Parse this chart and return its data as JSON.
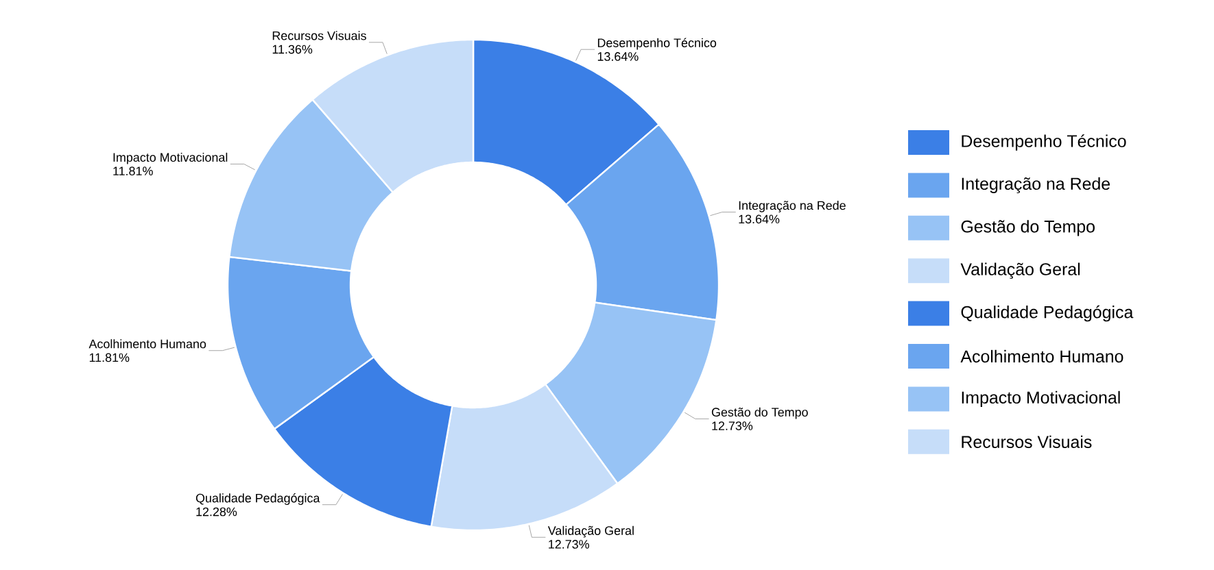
{
  "chart_data": {
    "type": "donut",
    "categories": [
      "Desempenho Técnico",
      "Integração na Rede",
      "Gestão do Tempo",
      "Validação Geral",
      "Qualidade Pedagógica",
      "Acolhimento Humano",
      "Impacto Motivacional",
      "Recursos Visuais"
    ],
    "values": [
      13.64,
      13.64,
      12.73,
      12.73,
      12.28,
      11.81,
      11.81,
      11.36
    ],
    "value_labels": [
      "13.64%",
      "13.64%",
      "12.73%",
      "12.73%",
      "12.28%",
      "11.81%",
      "11.81%",
      "11.36%"
    ],
    "colors": [
      "#3b7fe6",
      "#6aa5ef",
      "#97c3f5",
      "#c6ddf9",
      "#3b7fe6",
      "#6aa5ef",
      "#97c3f5",
      "#c6ddf9"
    ],
    "legend": "right"
  }
}
